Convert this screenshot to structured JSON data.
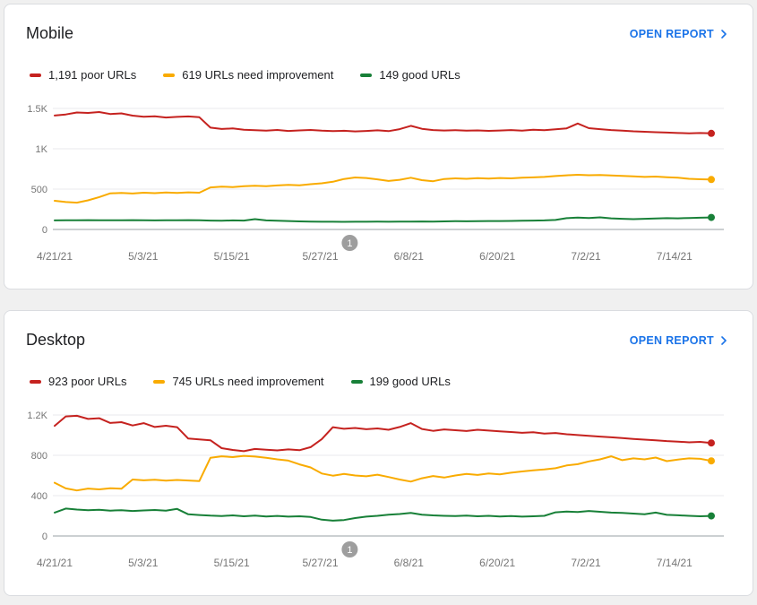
{
  "colors": {
    "poor": "#c5221f",
    "needs_improvement": "#f9ab00",
    "good": "#188038",
    "link": "#1a73e8",
    "axis_text": "#757575",
    "gridline": "#e8eaed",
    "zero_line": "#9aa0a6",
    "annotation": "#9e9e9e"
  },
  "cards": [
    {
      "title": "Mobile",
      "open_report_label": "OPEN REPORT",
      "legend": [
        {
          "label": "1,191 poor URLs",
          "color": "#c5221f"
        },
        {
          "label": "619 URLs need improvement",
          "color": "#f9ab00"
        },
        {
          "label": "149 good URLs",
          "color": "#188038"
        }
      ]
    },
    {
      "title": "Desktop",
      "open_report_label": "OPEN REPORT",
      "legend": [
        {
          "label": "923 poor URLs",
          "color": "#c5221f"
        },
        {
          "label": "745 URLs need improvement",
          "color": "#f9ab00"
        },
        {
          "label": "199 good URLs",
          "color": "#188038"
        }
      ]
    }
  ],
  "chart_data": [
    {
      "type": "line",
      "title": "Mobile Core Web Vitals URLs over time",
      "x_range": [
        0,
        89
      ],
      "x_ticks": [
        {
          "label": "4/21/21",
          "day": 0
        },
        {
          "label": "5/3/21",
          "day": 12
        },
        {
          "label": "5/15/21",
          "day": 24
        },
        {
          "label": "5/27/21",
          "day": 36
        },
        {
          "label": "6/8/21",
          "day": 48
        },
        {
          "label": "6/20/21",
          "day": 60
        },
        {
          "label": "7/2/21",
          "day": 72
        },
        {
          "label": "7/14/21",
          "day": 84
        }
      ],
      "ylim": [
        0,
        1500
      ],
      "y_ticks": [
        {
          "value": 0,
          "label": "0"
        },
        {
          "value": 500,
          "label": "500"
        },
        {
          "value": 1000,
          "label": "1K"
        },
        {
          "value": 1500,
          "label": "1.5K"
        }
      ],
      "annotation": {
        "label": "1",
        "day": 40
      },
      "series": [
        {
          "name": "poor-urls",
          "color": "#c5221f",
          "values": [
            1412,
            1426,
            1450,
            1444,
            1456,
            1431,
            1439,
            1411,
            1397,
            1403,
            1388,
            1395,
            1401,
            1391,
            1262,
            1246,
            1252,
            1237,
            1231,
            1226,
            1233,
            1221,
            1228,
            1233,
            1224,
            1219,
            1223,
            1216,
            1221,
            1229,
            1219,
            1243,
            1284,
            1248,
            1232,
            1227,
            1231,
            1224,
            1228,
            1222,
            1227,
            1232,
            1226,
            1236,
            1230,
            1241,
            1253,
            1313,
            1255,
            1243,
            1232,
            1226,
            1217,
            1211,
            1206,
            1201,
            1196,
            1192,
            1196,
            1191
          ]
        },
        {
          "name": "needs-improvement-urls",
          "color": "#f9ab00",
          "values": [
            355,
            340,
            332,
            361,
            401,
            448,
            452,
            446,
            455,
            450,
            458,
            452,
            460,
            455,
            521,
            531,
            526,
            536,
            541,
            536,
            546,
            552,
            548,
            561,
            572,
            591,
            626,
            645,
            638,
            621,
            601,
            616,
            641,
            611,
            598,
            626,
            633,
            628,
            636,
            631,
            638,
            633,
            641,
            646,
            651,
            662,
            671,
            678,
            672,
            676,
            670,
            664,
            658,
            651,
            656,
            648,
            641,
            628,
            622,
            619
          ]
        },
        {
          "name": "good-urls",
          "color": "#188038",
          "values": [
            112,
            115,
            113,
            116,
            114,
            115,
            113,
            116,
            114,
            112,
            115,
            113,
            116,
            114,
            110,
            108,
            112,
            110,
            128,
            112,
            108,
            104,
            100,
            98,
            96,
            95,
            94,
            96,
            95,
            97,
            96,
            98,
            97,
            99,
            98,
            100,
            102,
            101,
            103,
            105,
            104,
            106,
            108,
            110,
            112,
            118,
            140,
            148,
            142,
            150,
            138,
            132,
            128,
            132,
            136,
            140,
            138,
            142,
            146,
            149
          ]
        }
      ]
    },
    {
      "type": "line",
      "title": "Desktop Core Web Vitals URLs over time",
      "x_range": [
        0,
        89
      ],
      "x_ticks": [
        {
          "label": "4/21/21",
          "day": 0
        },
        {
          "label": "5/3/21",
          "day": 12
        },
        {
          "label": "5/15/21",
          "day": 24
        },
        {
          "label": "5/27/21",
          "day": 36
        },
        {
          "label": "6/8/21",
          "day": 48
        },
        {
          "label": "6/20/21",
          "day": 60
        },
        {
          "label": "7/2/21",
          "day": 72
        },
        {
          "label": "7/14/21",
          "day": 84
        }
      ],
      "ylim": [
        0,
        1200
      ],
      "y_ticks": [
        {
          "value": 0,
          "label": "0"
        },
        {
          "value": 400,
          "label": "400"
        },
        {
          "value": 800,
          "label": "800"
        },
        {
          "value": 1200,
          "label": "1.2K"
        }
      ],
      "annotation": {
        "label": "1",
        "day": 40
      },
      "series": [
        {
          "name": "poor-urls",
          "color": "#c5221f",
          "values": [
            1092,
            1186,
            1192,
            1161,
            1168,
            1121,
            1129,
            1096,
            1119,
            1081,
            1093,
            1079,
            966,
            958,
            949,
            871,
            853,
            841,
            863,
            856,
            849,
            859,
            851,
            881,
            961,
            1079,
            1063,
            1071,
            1059,
            1067,
            1053,
            1081,
            1119,
            1061,
            1043,
            1057,
            1049,
            1041,
            1053,
            1045,
            1037,
            1031,
            1023,
            1029,
            1016,
            1021,
            1009,
            1001,
            993,
            986,
            979,
            971,
            963,
            956,
            949,
            941,
            936,
            929,
            933,
            923
          ]
        },
        {
          "name": "needs-improvement-urls",
          "color": "#f9ab00",
          "values": [
            528,
            472,
            452,
            470,
            462,
            474,
            468,
            560,
            552,
            558,
            548,
            556,
            550,
            545,
            775,
            790,
            782,
            795,
            788,
            775,
            760,
            748,
            710,
            680,
            620,
            598,
            615,
            600,
            592,
            608,
            585,
            560,
            540,
            572,
            595,
            580,
            600,
            615,
            605,
            620,
            612,
            628,
            640,
            652,
            660,
            672,
            700,
            712,
            740,
            760,
            790,
            752,
            770,
            760,
            778,
            742,
            758,
            770,
            765,
            745
          ]
        },
        {
          "name": "good-urls",
          "color": "#188038",
          "values": [
            232,
            272,
            262,
            256,
            260,
            252,
            256,
            248,
            253,
            258,
            252,
            268,
            215,
            208,
            202,
            198,
            204,
            196,
            202,
            194,
            199,
            192,
            196,
            188,
            162,
            152,
            158,
            178,
            192,
            200,
            212,
            218,
            228,
            212,
            204,
            200,
            197,
            202,
            196,
            200,
            194,
            198,
            192,
            196,
            200,
            235,
            242,
            238,
            248,
            240,
            232,
            228,
            222,
            215,
            232,
            210,
            205,
            200,
            196,
            199
          ]
        }
      ]
    }
  ]
}
